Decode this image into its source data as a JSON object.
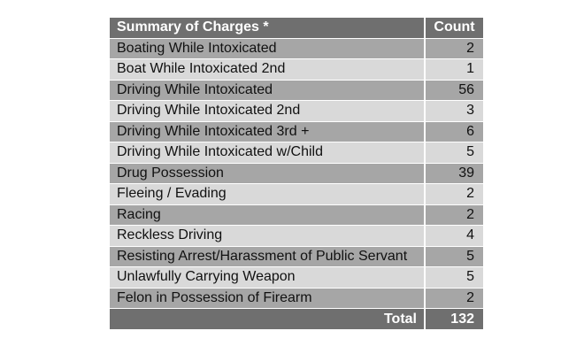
{
  "table": {
    "header": {
      "charge": "Summary of Charges *",
      "count": "Count"
    },
    "rows": [
      {
        "charge": "Boating While Intoxicated",
        "count": "2"
      },
      {
        "charge": "Boat While Intoxicated 2nd",
        "count": "1"
      },
      {
        "charge": "Driving While Intoxicated",
        "count": "56"
      },
      {
        "charge": "Driving While Intoxicated 2nd",
        "count": "3"
      },
      {
        "charge": "Driving While Intoxicated 3rd +",
        "count": "6"
      },
      {
        "charge": "Driving While Intoxicated w/Child",
        "count": "5"
      },
      {
        "charge": "Drug Possession",
        "count": "39"
      },
      {
        "charge": "Fleeing / Evading",
        "count": "2"
      },
      {
        "charge": "Racing",
        "count": "2"
      },
      {
        "charge": "Reckless Driving",
        "count": "4"
      },
      {
        "charge": "Resisting Arrest/Harassment of Public Servant",
        "count": "5"
      },
      {
        "charge": "Unlawfully Carrying Weapon",
        "count": "5"
      },
      {
        "charge": "Felon in Possession of Firearm",
        "count": "2"
      }
    ],
    "total": {
      "label": "Total",
      "count": "132"
    }
  },
  "colors": {
    "header_bg": "#6f6f6f",
    "row_dark": "#a6a6a6",
    "row_light": "#d9d9d9",
    "header_text": "#ffffff"
  }
}
